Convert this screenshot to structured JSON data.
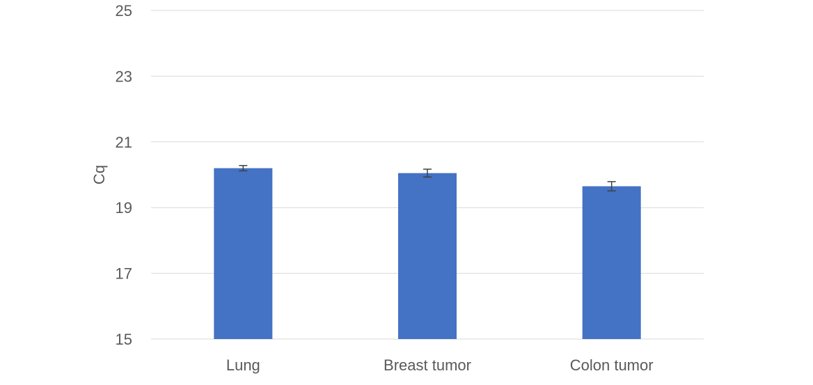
{
  "chart_data": {
    "type": "bar",
    "title": "",
    "xlabel": "",
    "ylabel": "Cq",
    "categories": [
      "Lung",
      "Breast tumor",
      "Colon tumor"
    ],
    "values": [
      20.2,
      20.05,
      19.65
    ],
    "error": [
      0.08,
      0.12,
      0.14
    ],
    "ylim": [
      15,
      25
    ],
    "yticks": [
      15,
      17,
      19,
      21,
      23,
      25
    ],
    "ytick_labels": [
      "15",
      "17",
      "19",
      "21",
      "23",
      "25"
    ],
    "grid": true,
    "legend": "none",
    "bar_color": "#4472c4",
    "errorbar_color": "#404040"
  }
}
